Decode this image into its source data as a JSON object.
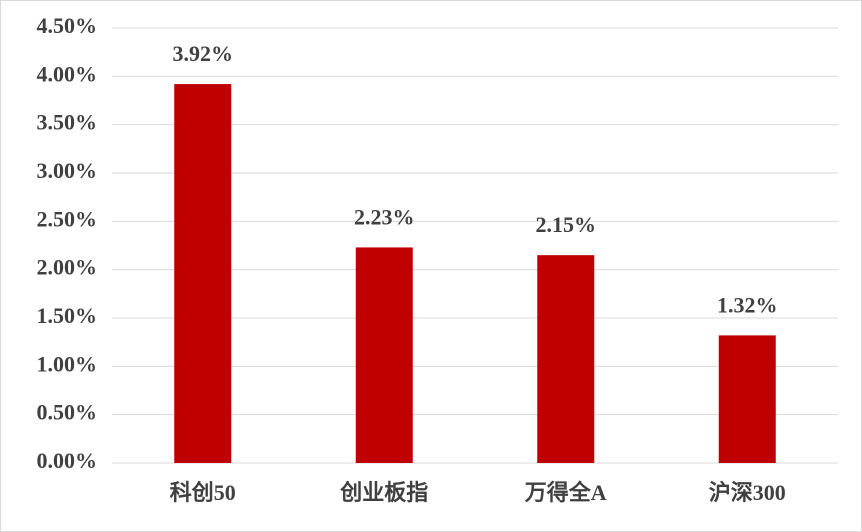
{
  "chart_data": {
    "type": "bar",
    "categories": [
      "科创50",
      "创业板指",
      "万得全A",
      "沪深300"
    ],
    "values": [
      3.92,
      2.23,
      2.15,
      1.32
    ],
    "value_labels": [
      "3.92%",
      "2.23%",
      "2.15%",
      "1.32%"
    ],
    "color": "#c00000",
    "ylim": [
      0,
      4.5
    ],
    "yticks": [
      {
        "value": 0,
        "label": "0.00%"
      },
      {
        "value": 0.5,
        "label": "0.50%"
      },
      {
        "value": 1,
        "label": "1.00%"
      },
      {
        "value": 1.5,
        "label": "1.50%"
      },
      {
        "value": 2,
        "label": "2.00%"
      },
      {
        "value": 2.5,
        "label": "2.50%"
      },
      {
        "value": 3,
        "label": "3.00%"
      },
      {
        "value": 3.5,
        "label": "3.50%"
      },
      {
        "value": 4,
        "label": "4.00%"
      },
      {
        "value": 4.5,
        "label": "4.50%"
      }
    ],
    "grid": true
  }
}
